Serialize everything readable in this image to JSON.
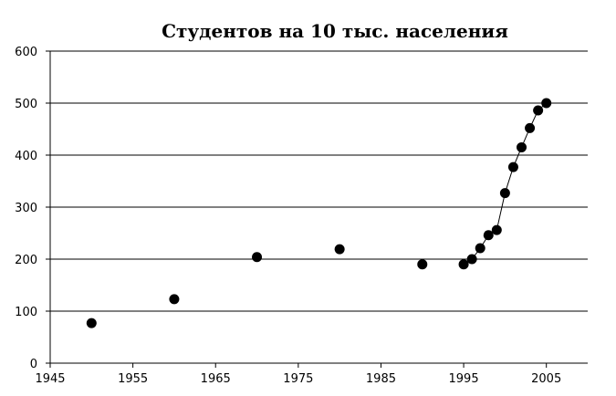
{
  "chart_data": {
    "type": "scatter",
    "title": "Студентов на 10 тыс. населения",
    "xlabel": "",
    "ylabel": "",
    "xlim": [
      1945,
      2010
    ],
    "ylim": [
      0,
      600
    ],
    "x_ticks": [
      1945,
      1955,
      1965,
      1975,
      1985,
      1995,
      2005
    ],
    "y_ticks": [
      0,
      100,
      200,
      300,
      400,
      500,
      600
    ],
    "grid": {
      "horizontal": true,
      "vertical": false
    },
    "legend": "none",
    "series": [
      {
        "marker_color": "#000000",
        "x": [
          1950,
          1960,
          1970,
          1980,
          1990,
          1995,
          1996,
          1997,
          1998,
          1999,
          2000,
          2001,
          2002,
          2003,
          2004,
          2005
        ],
        "y": [
          77,
          123,
          204,
          219,
          190,
          190,
          200,
          221,
          246,
          256,
          327,
          377,
          415,
          452,
          486,
          500
        ],
        "line_from_x": 1995
      }
    ]
  }
}
